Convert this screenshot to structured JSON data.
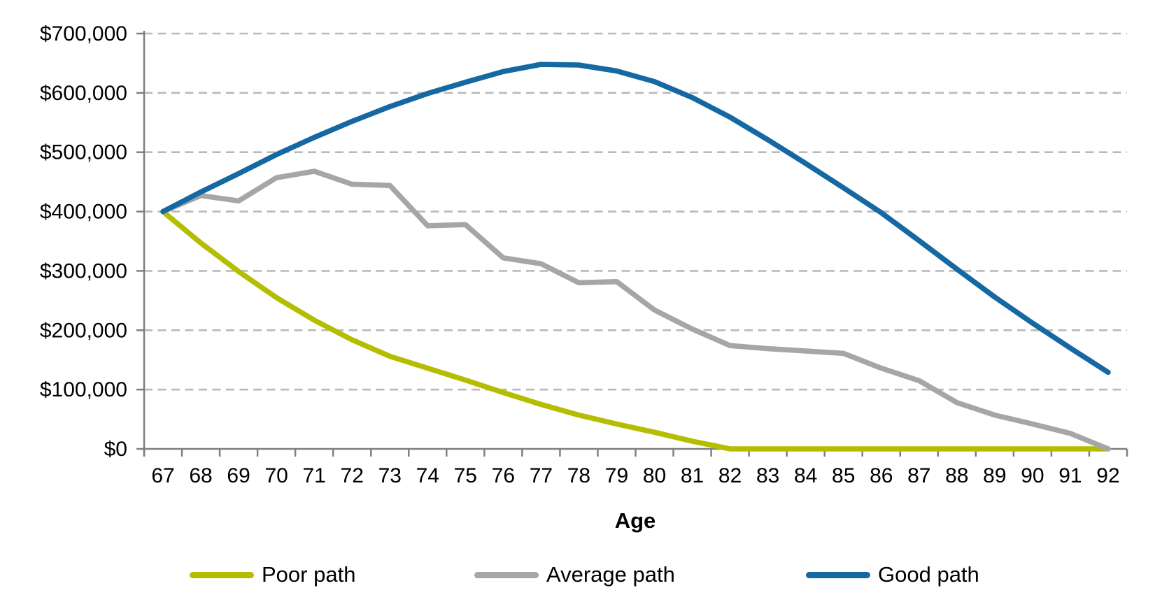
{
  "chart_data": {
    "type": "line",
    "title": "",
    "xlabel": "Age",
    "ylabel": "",
    "x": [
      67,
      68,
      69,
      70,
      71,
      72,
      73,
      74,
      75,
      76,
      77,
      78,
      79,
      80,
      81,
      82,
      83,
      84,
      85,
      86,
      87,
      88,
      89,
      90,
      91,
      92
    ],
    "x_tick_labels": [
      "67",
      "68",
      "69",
      "70",
      "71",
      "72",
      "73",
      "74",
      "75",
      "76",
      "77",
      "78",
      "79",
      "80",
      "81",
      "82",
      "83",
      "84",
      "85",
      "86",
      "87",
      "88",
      "89",
      "90",
      "91",
      "92"
    ],
    "ylim": [
      0,
      700000
    ],
    "ytick_step": 100000,
    "ytick_labels": [
      "$0",
      "$100,000",
      "$200,000",
      "$300,000",
      "$400,000",
      "$500,000",
      "$600,000",
      "$700,000"
    ],
    "grid": "horizontal-dashed",
    "legend_position": "bottom",
    "series": [
      {
        "name": "Poor path",
        "color": "#b5bd00",
        "values": [
          400000,
          347000,
          299000,
          255000,
          217000,
          184000,
          156000,
          136000,
          116000,
          95000,
          75000,
          57000,
          42000,
          28000,
          13000,
          0,
          0,
          0,
          0,
          0,
          0,
          0,
          0,
          0,
          0,
          0
        ]
      },
      {
        "name": "Average path",
        "color": "#a6a6a6",
        "values": [
          400000,
          427000,
          418000,
          457000,
          468000,
          446000,
          444000,
          376000,
          378000,
          322000,
          312000,
          280000,
          282000,
          234000,
          202000,
          174000,
          169000,
          165000,
          161000,
          136000,
          115000,
          78000,
          57000,
          42000,
          26000,
          0
        ]
      },
      {
        "name": "Good path",
        "color": "#1668a3",
        "values": [
          400000,
          433000,
          464000,
          496000,
          525000,
          552000,
          577000,
          599000,
          618000,
          636000,
          648000,
          647000,
          637000,
          619000,
          592000,
          559000,
          521000,
          481000,
          440000,
          398000,
          351000,
          303000,
          256000,
          212000,
          170000,
          129000
        ]
      }
    ]
  }
}
